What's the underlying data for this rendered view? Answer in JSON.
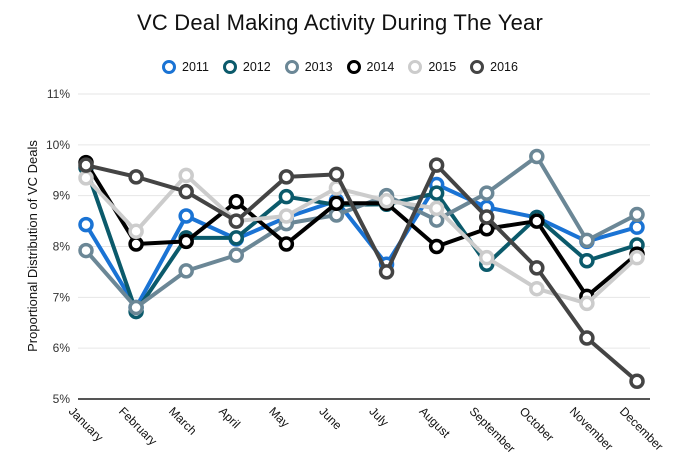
{
  "chart_data": {
    "type": "line",
    "title": "VC Deal Making Activity During The Year",
    "xlabel": "",
    "ylabel": "Proportional Distribution of VC Deals",
    "ylim": [
      5,
      11
    ],
    "y_ticks": [
      5,
      6,
      7,
      8,
      9,
      10,
      11
    ],
    "y_tick_labels": [
      "5%",
      "6%",
      "7%",
      "8%",
      "9%",
      "10%",
      "11%"
    ],
    "grid": "horizontal",
    "legend_position": "top-center",
    "categories": [
      "January",
      "February",
      "March",
      "April",
      "May",
      "June",
      "July",
      "August",
      "September",
      "October",
      "November",
      "December"
    ],
    "series": [
      {
        "name": "2011",
        "color": "#1a73d4",
        "values": [
          8.43,
          6.8,
          8.6,
          8.15,
          8.57,
          8.9,
          7.65,
          9.22,
          8.77,
          8.57,
          8.1,
          8.38
        ]
      },
      {
        "name": "2012",
        "color": "#0b5a6b",
        "values": [
          9.55,
          6.72,
          8.17,
          8.17,
          8.98,
          8.82,
          8.83,
          9.05,
          7.65,
          8.57,
          7.72,
          8.03
        ]
      },
      {
        "name": "2013",
        "color": "#6b8796",
        "values": [
          7.92,
          6.8,
          7.52,
          7.83,
          8.45,
          8.62,
          9.0,
          8.52,
          9.05,
          9.77,
          8.12,
          8.63
        ]
      },
      {
        "name": "2014",
        "color": "#000000",
        "values": [
          9.65,
          8.05,
          8.1,
          8.88,
          8.05,
          8.85,
          8.85,
          8.0,
          8.35,
          8.5,
          7.02,
          7.85
        ]
      },
      {
        "name": "2015",
        "color": "#cccccc",
        "values": [
          9.35,
          8.3,
          9.4,
          8.5,
          8.6,
          9.15,
          8.9,
          8.75,
          7.78,
          7.17,
          6.88,
          7.78
        ]
      },
      {
        "name": "2016",
        "color": "#444444",
        "values": [
          9.6,
          9.37,
          9.08,
          8.5,
          9.37,
          9.42,
          7.5,
          9.6,
          8.58,
          7.58,
          6.2,
          5.35
        ]
      }
    ]
  }
}
